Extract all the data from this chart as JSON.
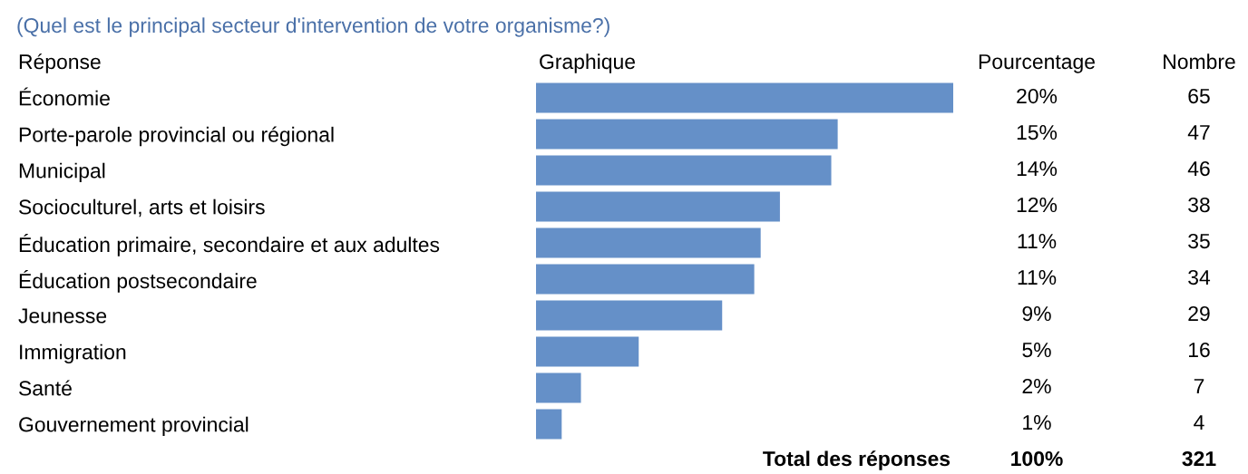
{
  "chart_data": {
    "type": "bar",
    "orientation": "horizontal",
    "title": "(Quel est le principal secteur d'intervention de votre organisme?)",
    "categories": [
      "Économie",
      "Porte-parole provincial ou régional",
      "Municipal",
      "Socioculturel, arts et loisirs",
      "Éducation primaire, secondaire et aux adultes",
      "Éducation postsecondaire",
      "Jeunesse",
      "Immigration",
      "Santé",
      "Gouvernement provincial"
    ],
    "values": [
      65,
      47,
      46,
      38,
      35,
      34,
      29,
      16,
      7,
      4
    ],
    "color": "#6590c8",
    "data_labels": true,
    "annotations": [
      "Réponse",
      "Graphique",
      "Pourcentage",
      "Nombre",
      "Total des réponses",
      "100%",
      "321",
      "20%",
      "15%",
      "14%",
      "12%",
      "11%",
      "11%",
      "9%",
      "5%",
      "2%",
      "1%"
    ]
  }
}
